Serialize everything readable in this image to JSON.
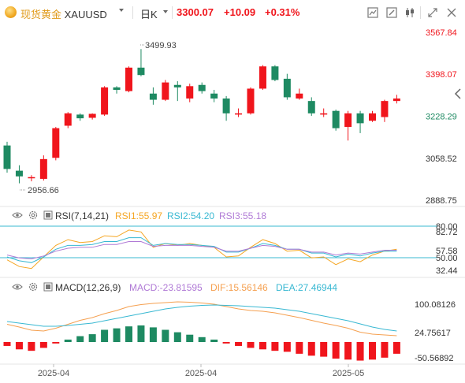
{
  "header": {
    "symbol_cn": "现货黄金",
    "symbol": "XAUUSD",
    "interval": "日K",
    "price": "3300.07",
    "change": "+10.09",
    "change_pct": "+0.31%"
  },
  "icons": [
    "indicator-icon",
    "draw-icon",
    "candle-style-icon",
    "fullscreen-icon",
    "close-icon",
    "collapse-arrow-icon"
  ],
  "colors": {
    "up": "#f0151c",
    "down": "#1e8a62",
    "rsi1": "#f5a623",
    "rsi2": "#38b8d2",
    "rsi3": "#b07ad6",
    "macd_dif": "#f5a050",
    "macd_dea": "#38b8d2"
  },
  "main_axis": {
    "ticks": [
      "3567.84",
      "3398.07",
      "3228.29",
      "3058.52",
      "2888.75"
    ],
    "high_label": "3499.93",
    "low_label": "2956.66"
  },
  "rsi": {
    "title": "RSI(7,14,21)",
    "rsi1": "RSI1:55.97",
    "rsi2": "RSI2:54.20",
    "rsi3": "RSI3:55.18",
    "ticks": [
      "80.00",
      "82.72",
      "57.58",
      "50.00",
      "32.44"
    ]
  },
  "macd": {
    "title": "MACD(12,26,9)",
    "macd": "MACD:-23.81595",
    "dif": "DIF:15.56146",
    "dea": "DEA:27.46944",
    "ticks": [
      "100.08126",
      "24.75617",
      "-50.56892"
    ]
  },
  "x_axis": {
    "ticks": [
      "2025-04",
      "2025-04",
      "2025-05"
    ]
  },
  "chart_data": {
    "type": "candlestick",
    "candles": [
      {
        "o": 3110,
        "c": 3015,
        "h": 3125,
        "l": 3000
      },
      {
        "o": 3008,
        "c": 2985,
        "h": 3030,
        "l": 2957
      },
      {
        "o": 2980,
        "c": 2982,
        "h": 2990,
        "l": 2965
      },
      {
        "o": 2975,
        "c": 3055,
        "h": 3070,
        "l": 2968
      },
      {
        "o": 3060,
        "c": 3180,
        "h": 3185,
        "l": 3050
      },
      {
        "o": 3190,
        "c": 3240,
        "h": 3245,
        "l": 3180
      },
      {
        "o": 3235,
        "c": 3220,
        "h": 3240,
        "l": 3210
      },
      {
        "o": 3222,
        "c": 3238,
        "h": 3240,
        "l": 3215
      },
      {
        "o": 3235,
        "c": 3345,
        "h": 3350,
        "l": 3230
      },
      {
        "o": 3345,
        "c": 3335,
        "h": 3350,
        "l": 3320
      },
      {
        "o": 3330,
        "c": 3425,
        "h": 3430,
        "l": 3325
      },
      {
        "o": 3425,
        "c": 3395,
        "h": 3500,
        "l": 3390
      },
      {
        "o": 3320,
        "c": 3295,
        "h": 3345,
        "l": 3275
      },
      {
        "o": 3295,
        "c": 3365,
        "h": 3375,
        "l": 3290
      },
      {
        "o": 3355,
        "c": 3345,
        "h": 3370,
        "l": 3290
      },
      {
        "o": 3300,
        "c": 3350,
        "h": 3360,
        "l": 3285
      },
      {
        "o": 3355,
        "c": 3330,
        "h": 3365,
        "l": 3320
      },
      {
        "o": 3320,
        "c": 3300,
        "h": 3335,
        "l": 3285
      },
      {
        "o": 3300,
        "c": 3240,
        "h": 3310,
        "l": 3210
      },
      {
        "o": 3235,
        "c": 3240,
        "h": 3260,
        "l": 3225
      },
      {
        "o": 3240,
        "c": 3340,
        "h": 3345,
        "l": 3235
      },
      {
        "o": 3340,
        "c": 3430,
        "h": 3435,
        "l": 3335
      },
      {
        "o": 3430,
        "c": 3375,
        "h": 3435,
        "l": 3370
      },
      {
        "o": 3380,
        "c": 3305,
        "h": 3400,
        "l": 3295
      },
      {
        "o": 3300,
        "c": 3320,
        "h": 3340,
        "l": 3295
      },
      {
        "o": 3290,
        "c": 3240,
        "h": 3305,
        "l": 3230
      },
      {
        "o": 3235,
        "c": 3240,
        "h": 3260,
        "l": 3225
      },
      {
        "o": 3250,
        "c": 3180,
        "h": 3255,
        "l": 3170
      },
      {
        "o": 3185,
        "c": 3240,
        "h": 3250,
        "l": 3130
      },
      {
        "o": 3240,
        "c": 3200,
        "h": 3250,
        "l": 3160
      },
      {
        "o": 3210,
        "c": 3240,
        "h": 3250,
        "l": 3205
      },
      {
        "o": 3225,
        "c": 3290,
        "h": 3295,
        "l": 3205
      },
      {
        "o": 3290,
        "c": 3300,
        "h": 3315,
        "l": 3280
      }
    ],
    "rsi_series": [
      {
        "name": "RSI1",
        "values": [
          45,
          38,
          36,
          48,
          60,
          66,
          63,
          64,
          70,
          69,
          76,
          74,
          58,
          62,
          60,
          62,
          60,
          58,
          48,
          49,
          58,
          66,
          62,
          54,
          55,
          47,
          48,
          40,
          46,
          43,
          50,
          54,
          56
        ]
      },
      {
        "name": "RSI2",
        "values": [
          48,
          44,
          42,
          48,
          56,
          60,
          60,
          61,
          64,
          64,
          68,
          68,
          60,
          62,
          61,
          61,
          60,
          59,
          53,
          53,
          57,
          62,
          60,
          56,
          56,
          52,
          52,
          48,
          51,
          49,
          52,
          54,
          54
        ]
      },
      {
        "name": "RSI3",
        "values": [
          50,
          47,
          46,
          49,
          54,
          57,
          58,
          58,
          61,
          61,
          64,
          64,
          59,
          60,
          60,
          60,
          59,
          58,
          54,
          54,
          57,
          60,
          59,
          56,
          56,
          53,
          53,
          50,
          52,
          51,
          53,
          55,
          55
        ]
      }
    ],
    "macd_hist": [
      -8,
      -15,
      -18,
      -12,
      -3,
      5,
      12,
      16,
      25,
      28,
      32,
      34,
      30,
      25,
      20,
      15,
      10,
      5,
      -3,
      -8,
      -12,
      -15,
      -18,
      -20,
      -24,
      -28,
      -30,
      -34,
      -36,
      -38,
      -36,
      -32,
      -24
    ],
    "dif": [
      45,
      38,
      30,
      28,
      35,
      45,
      55,
      62,
      72,
      80,
      90,
      95,
      98,
      100,
      102,
      101,
      99,
      96,
      90,
      84,
      80,
      78,
      74,
      68,
      62,
      55,
      48,
      42,
      35,
      25,
      20,
      18,
      16
    ],
    "dea": [
      52,
      48,
      44,
      40,
      40,
      42,
      45,
      48,
      54,
      60,
      66,
      72,
      78,
      84,
      88,
      91,
      93,
      94,
      93,
      92,
      90,
      88,
      86,
      82,
      78,
      72,
      66,
      60,
      54,
      46,
      38,
      32,
      28
    ]
  }
}
